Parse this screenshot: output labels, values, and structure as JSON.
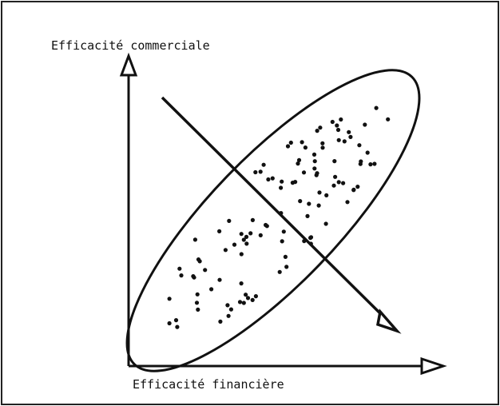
{
  "y_axis": {
    "label": "Efficacité commerciale"
  },
  "x_axis": {
    "label": "Efficacité financière"
  }
}
